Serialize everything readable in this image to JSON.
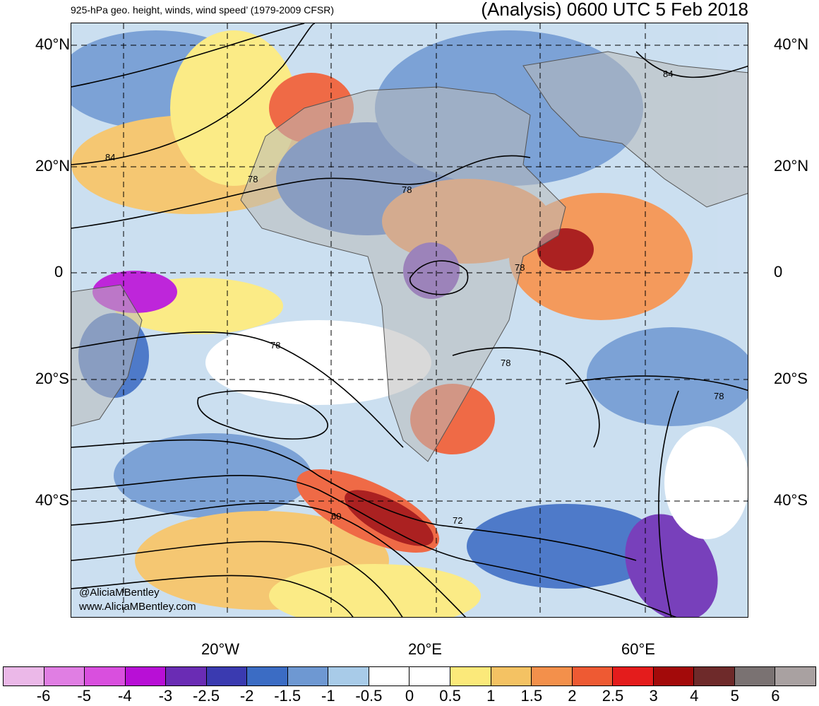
{
  "title_left": "925-hPa geo. height, winds, wind speed’ (1979-2009 CFSR)",
  "title_right": "(Analysis) 0600 UTC 5 Feb 2018",
  "lat_labels": [
    "40°N",
    "20°N",
    "0",
    "20°S",
    "40°S"
  ],
  "lon_labels": [
    "20°W",
    "20°E",
    "60°E"
  ],
  "contour_labels": [
    "84",
    "78",
    "78",
    "78",
    "78",
    "78",
    "78",
    "84",
    "60",
    "72"
  ],
  "credits": [
    "@AliciaMBentley",
    "www.AliciaMBentley.com"
  ],
  "colorbar": {
    "labels": [
      "-6",
      "-5",
      "-4",
      "-3",
      "-2.5",
      "-2",
      "-1.5",
      "-1",
      "-0.5",
      "0",
      "0.5",
      "1",
      "1.5",
      "2",
      "2.5",
      "3",
      "4",
      "5",
      "6"
    ],
    "colors": [
      "#ebb8e8",
      "#e07ee3",
      "#d94fde",
      "#b80fd6",
      "#6a2cb4",
      "#3a3ab0",
      "#3b6cc4",
      "#6e98d2",
      "#a8cbe8",
      "#ffffff",
      "#ffffff",
      "#fbe97a",
      "#f4c263",
      "#f3904b",
      "#ee5a33",
      "#e41c1c",
      "#a30a0a",
      "#6e2a2a",
      "#7a7272",
      "#a9a1a1"
    ]
  }
}
